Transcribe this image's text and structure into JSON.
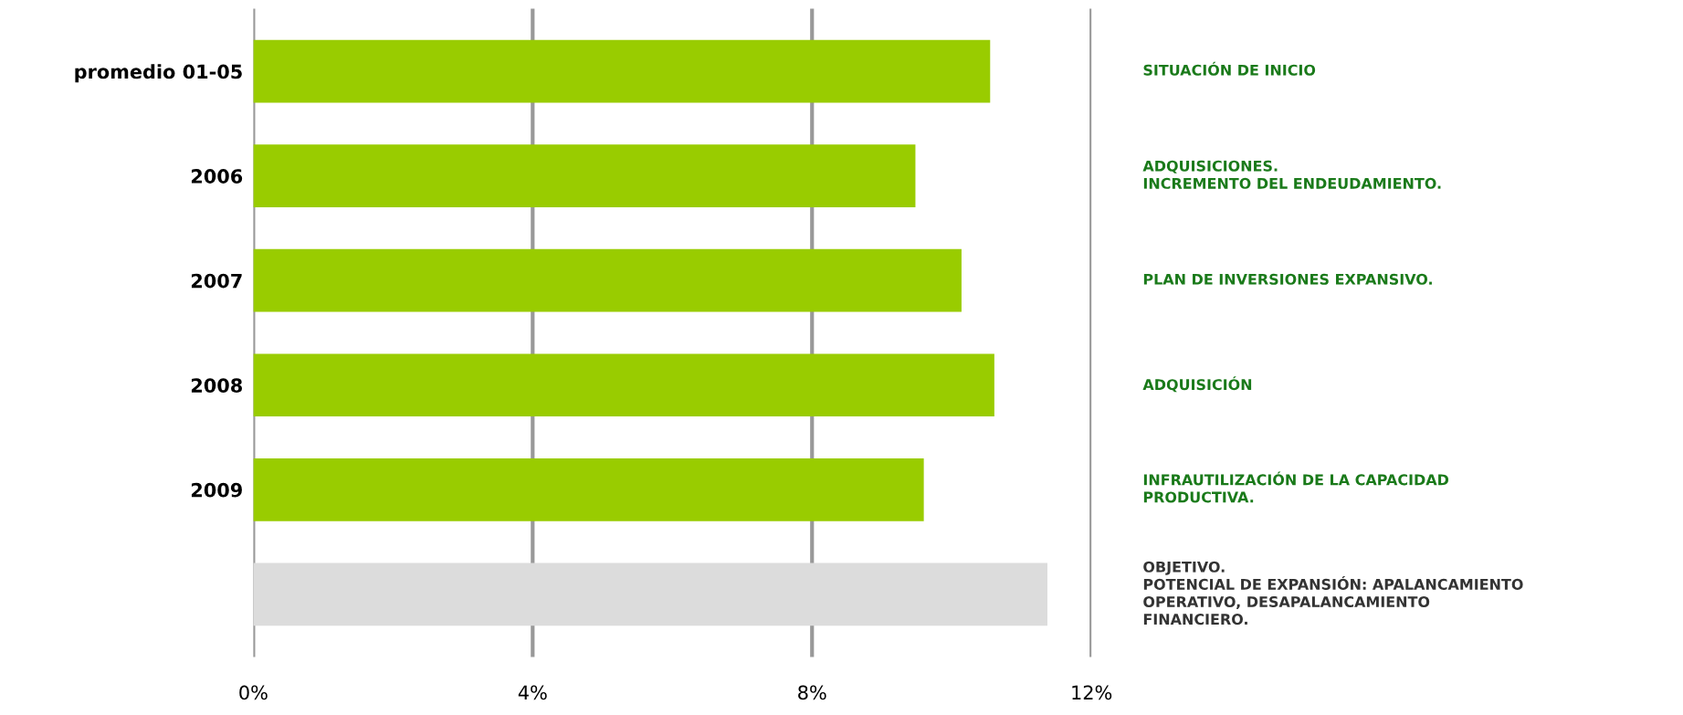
{
  "chart_data": {
    "type": "bar",
    "orientation": "horizontal",
    "categories": [
      "promedio 01-05",
      "2006",
      "2007",
      "2008",
      "2009",
      null
    ],
    "values": [
      10.55,
      9.48,
      10.14,
      10.61,
      9.6,
      11.37
    ],
    "colors": [
      "#99cc00",
      "#99cc00",
      "#99cc00",
      "#99cc00",
      "#99cc00",
      "#dcdcdc"
    ],
    "xlim": [
      0,
      12
    ],
    "xticks": [
      {
        "value": 0,
        "label": "0%"
      },
      {
        "value": 4,
        "label": "4%"
      },
      {
        "value": 8,
        "label": "8%"
      },
      {
        "value": 12,
        "label": "12%"
      }
    ],
    "grid": "x",
    "annotations": [
      "SITUACIÓN DE INICIO",
      "ADQUISICIONES.\nINCREMENTO DEL ENDEUDAMIENTO.",
      "PLAN DE INVERSIONES EXPANSIVO.",
      "ADQUISICIÓN",
      "INFRAUTILIZACIÓN DE LA CAPACIDAD\nPRODUCTIVA.",
      "OBJETIVO.\nPOTENCIAL DE EXPANSIÓN: APALANCAMIENTO\nOPERATIVO, DESAPALANCAMIENTO\nFINANCIERO."
    ]
  }
}
